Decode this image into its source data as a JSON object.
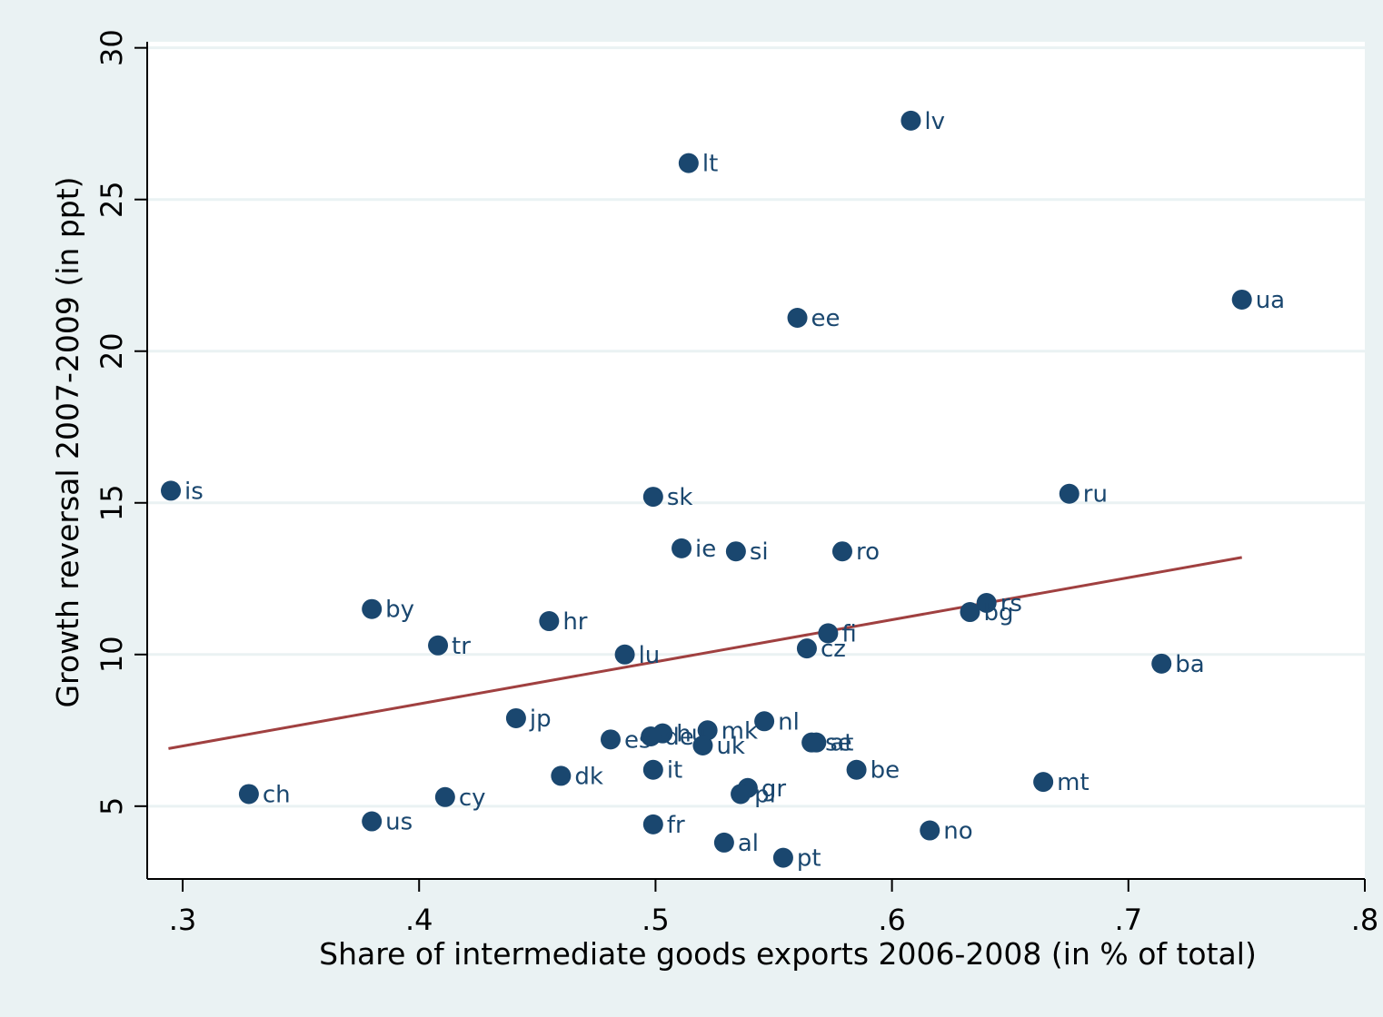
{
  "chart_data": {
    "type": "scatter",
    "xlabel": "Share of intermediate goods exports 2006-2008 (in % of total)",
    "ylabel": "Growth reversal 2007-2009 (in ppt)",
    "xlim": [
      0.285,
      0.8
    ],
    "ylim": [
      2.6,
      30.2
    ],
    "x_ticks": [
      0.3,
      0.4,
      0.5,
      0.6,
      0.7,
      0.8
    ],
    "x_tick_labels": [
      ".3",
      ".4",
      ".5",
      ".6",
      ".7",
      ".8"
    ],
    "y_ticks": [
      5,
      10,
      15,
      20,
      25,
      30
    ],
    "y_tick_labels": [
      "5",
      "10",
      "15",
      "20",
      "25",
      "30"
    ],
    "grid": "horizontal",
    "colors": {
      "background": "#eaf2f3",
      "plot_area": "#ffffff",
      "marker": "#1a476f",
      "fit_line": "#a04040"
    },
    "points": [
      {
        "label": "lv",
        "x": 0.608,
        "y": 27.6
      },
      {
        "label": "lt",
        "x": 0.514,
        "y": 26.2
      },
      {
        "label": "ua",
        "x": 0.748,
        "y": 21.7
      },
      {
        "label": "ee",
        "x": 0.56,
        "y": 21.1
      },
      {
        "label": "is",
        "x": 0.295,
        "y": 15.4
      },
      {
        "label": "sk",
        "x": 0.499,
        "y": 15.2
      },
      {
        "label": "ru",
        "x": 0.675,
        "y": 15.3
      },
      {
        "label": "ie",
        "x": 0.511,
        "y": 13.5
      },
      {
        "label": "si",
        "x": 0.534,
        "y": 13.4
      },
      {
        "label": "ro",
        "x": 0.579,
        "y": 13.4
      },
      {
        "label": "by",
        "x": 0.38,
        "y": 11.5
      },
      {
        "label": "rs",
        "x": 0.64,
        "y": 11.7
      },
      {
        "label": "bg",
        "x": 0.633,
        "y": 11.4
      },
      {
        "label": "hr",
        "x": 0.455,
        "y": 11.1
      },
      {
        "label": "fi",
        "x": 0.573,
        "y": 10.7
      },
      {
        "label": "tr",
        "x": 0.408,
        "y": 10.3
      },
      {
        "label": "cz",
        "x": 0.564,
        "y": 10.2
      },
      {
        "label": "lu",
        "x": 0.487,
        "y": 10.0
      },
      {
        "label": "ba",
        "x": 0.714,
        "y": 9.7
      },
      {
        "label": "jp",
        "x": 0.441,
        "y": 7.9
      },
      {
        "label": "nl",
        "x": 0.546,
        "y": 7.8
      },
      {
        "label": "mk",
        "x": 0.522,
        "y": 7.5
      },
      {
        "label": "hu",
        "x": 0.503,
        "y": 7.4
      },
      {
        "label": "de",
        "x": 0.498,
        "y": 7.3
      },
      {
        "label": "es",
        "x": 0.481,
        "y": 7.2
      },
      {
        "label": "se",
        "x": 0.566,
        "y": 7.1
      },
      {
        "label": "at",
        "x": 0.568,
        "y": 7.1
      },
      {
        "label": "uk",
        "x": 0.52,
        "y": 7.0
      },
      {
        "label": "it",
        "x": 0.499,
        "y": 6.2
      },
      {
        "label": "be",
        "x": 0.585,
        "y": 6.2
      },
      {
        "label": "dk",
        "x": 0.46,
        "y": 6.0
      },
      {
        "label": "mt",
        "x": 0.664,
        "y": 5.8
      },
      {
        "label": "gr",
        "x": 0.539,
        "y": 5.6
      },
      {
        "label": "pl",
        "x": 0.536,
        "y": 5.4
      },
      {
        "label": "ch",
        "x": 0.328,
        "y": 5.4
      },
      {
        "label": "cy",
        "x": 0.411,
        "y": 5.3
      },
      {
        "label": "us",
        "x": 0.38,
        "y": 4.5
      },
      {
        "label": "fr",
        "x": 0.499,
        "y": 4.4
      },
      {
        "label": "no",
        "x": 0.616,
        "y": 4.2
      },
      {
        "label": "al",
        "x": 0.529,
        "y": 3.8
      },
      {
        "label": "pt",
        "x": 0.554,
        "y": 3.3
      }
    ],
    "fit_line": {
      "x": [
        0.294,
        0.748
      ],
      "y": [
        6.9,
        13.2
      ]
    }
  }
}
